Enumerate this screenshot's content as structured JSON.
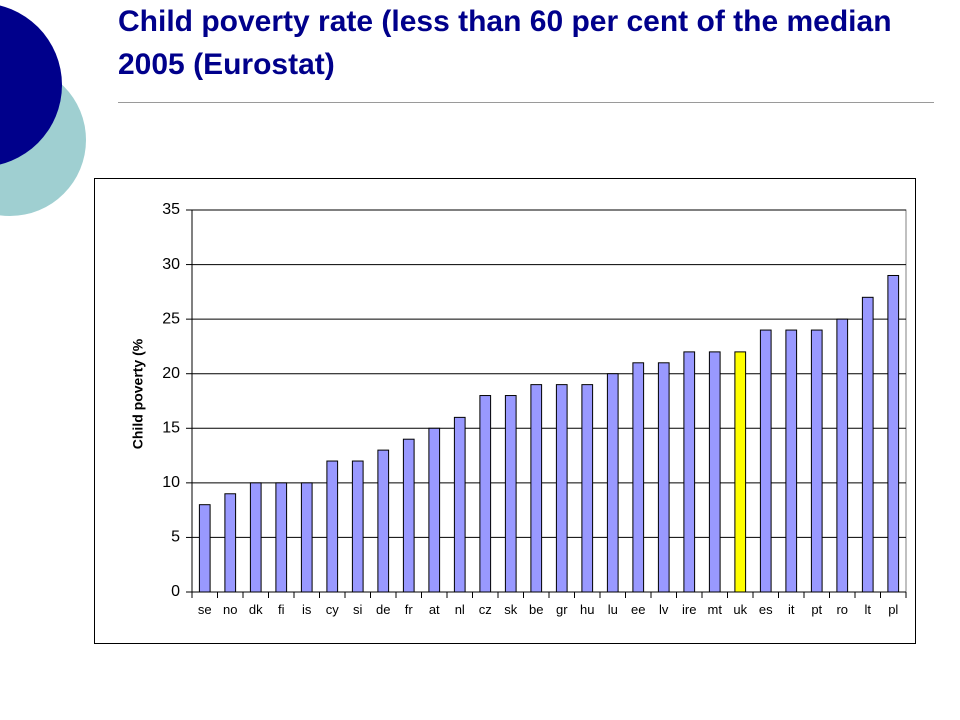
{
  "slide": {
    "title": "Child poverty rate (less than 60 per cent of the median 2005 (Eurostat)",
    "colors": {
      "title": "#00008b",
      "circle_dark": "#00008b",
      "circle_light": "#9fcfd1"
    }
  },
  "chart_data": {
    "type": "bar",
    "title": "",
    "xlabel": "",
    "ylabel": "Child poverty (%",
    "ylim": [
      0,
      35
    ],
    "yticks": [
      0,
      5,
      10,
      15,
      20,
      25,
      30,
      35
    ],
    "grid": true,
    "legend": "none",
    "bar_color": "#9999ff",
    "highlight_color": "#ffff00",
    "highlight_category": "uk",
    "categories": [
      "se",
      "no",
      "dk",
      "fi",
      "is",
      "cy",
      "si",
      "de",
      "fr",
      "at",
      "nl",
      "cz",
      "sk",
      "be",
      "gr",
      "hu",
      "lu",
      "ee",
      "lv",
      "ire",
      "mt",
      "uk",
      "es",
      "it",
      "pt",
      "ro",
      "lt",
      "pl"
    ],
    "values": [
      8,
      9,
      10,
      10,
      10,
      12,
      12,
      13,
      14,
      15,
      16,
      18,
      18,
      19,
      19,
      19,
      20,
      21,
      21,
      22,
      22,
      22,
      24,
      24,
      24,
      25,
      27,
      29
    ]
  }
}
